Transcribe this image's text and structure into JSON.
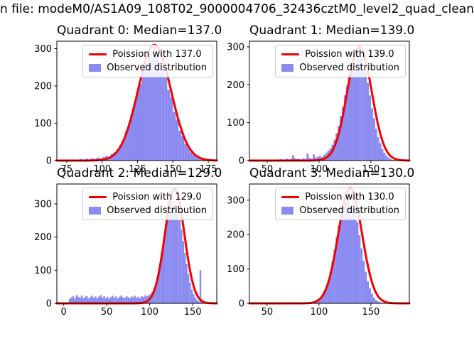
{
  "figure": {
    "title": "n file: modeM0/AS1A09_108T02_9000004706_32436cztM0_level2_quad_clean",
    "colors": {
      "bar": "#8a8af0",
      "fit": "#f40000",
      "spine": "#000000",
      "text": "#000000",
      "legend_border": "#cccccc"
    }
  },
  "chart_data": [
    {
      "type": "bar",
      "subtype": "histogram-with-fit",
      "title": "Quadrant 0: Median=137.0",
      "median": 137.0,
      "legend": [
        "Poission with 137.0",
        "Observed distribution"
      ],
      "legend_position": "upper right",
      "grid": false,
      "xlim": [
        68,
        181
      ],
      "ylim": [
        0,
        320
      ],
      "xticks": [
        75,
        100,
        125,
        150,
        175
      ],
      "yticks": [
        0,
        100,
        200,
        300
      ],
      "fit": {
        "type": "poisson",
        "lambda": 137.0,
        "peak": 310
      },
      "hist": {
        "bin_start": 74,
        "bin_width": 2,
        "counts": [
          2,
          1,
          3,
          2,
          1,
          4,
          2,
          5,
          3,
          6,
          4,
          8,
          6,
          9,
          12,
          10,
          18,
          22,
          30,
          42,
          55,
          78,
          95,
          125,
          150,
          185,
          205,
          240,
          260,
          285,
          270,
          305,
          280,
          265,
          245,
          225,
          190,
          170,
          130,
          110,
          80,
          65,
          45,
          35,
          22,
          15,
          9,
          5,
          3
        ]
      }
    },
    {
      "type": "bar",
      "subtype": "histogram-with-fit",
      "title": "Quadrant 1: Median=139.0",
      "median": 139.0,
      "legend": [
        "Poission with 139.0",
        "Observed distribution"
      ],
      "legend_position": "upper right",
      "grid": false,
      "xlim": [
        33,
        187
      ],
      "ylim": [
        0,
        315
      ],
      "xticks": [
        50,
        100,
        150
      ],
      "yticks": [
        0,
        100,
        200,
        300
      ],
      "fit": {
        "type": "poisson",
        "lambda": 139.0,
        "peak": 300
      },
      "hist": {
        "bin_start": 54,
        "bin_width": 2,
        "counts": [
          2,
          1,
          3,
          2,
          4,
          2,
          3,
          5,
          3,
          4,
          14,
          6,
          4,
          5,
          3,
          6,
          4,
          18,
          7,
          5,
          16,
          8,
          10,
          12,
          9,
          15,
          20,
          26,
          32,
          42,
          55,
          72,
          92,
          118,
          142,
          172,
          198,
          228,
          252,
          272,
          240,
          282,
          300,
          268,
          238,
          232,
          205,
          172,
          138,
          112,
          84,
          62,
          46,
          30,
          20,
          13,
          8,
          4,
          2
        ]
      }
    },
    {
      "type": "bar",
      "subtype": "histogram-with-fit",
      "title": "Quadrant 2: Median=129.0",
      "median": 129.0,
      "legend": [
        "Poission with 129.0",
        "Observed distribution"
      ],
      "legend_position": "upper right",
      "grid": false,
      "xlim": [
        -8,
        178
      ],
      "ylim": [
        0,
        360
      ],
      "xticks": [
        0,
        50,
        100,
        150
      ],
      "yticks": [
        0,
        100,
        200,
        300
      ],
      "fit": {
        "type": "poisson",
        "lambda": 129.0,
        "peak": 345
      },
      "hist": {
        "bin_start": 6,
        "bin_width": 2,
        "counts": [
          14,
          18,
          22,
          15,
          25,
          20,
          17,
          24,
          16,
          20,
          22,
          14,
          19,
          23,
          17,
          21,
          15,
          20,
          25,
          18,
          22,
          16,
          20,
          14,
          19,
          23,
          17,
          21,
          15,
          20,
          24,
          18,
          16,
          22,
          19,
          15,
          21,
          18,
          23,
          17,
          20,
          16,
          22,
          19,
          25,
          21,
          24,
          28,
          35,
          46,
          60,
          82,
          105,
          136,
          170,
          206,
          240,
          266,
          290,
          302,
          288,
          306,
          294,
          278,
          252,
          222,
          188,
          152,
          118,
          88,
          62,
          42,
          28,
          18,
          11,
          6,
          100,
          3,
          2,
          1,
          1
        ]
      }
    },
    {
      "type": "bar",
      "subtype": "histogram-with-fit",
      "title": "Quadrant 3: Median=130.0",
      "median": 130.0,
      "legend": [
        "Poission with 130.0",
        "Observed distribution"
      ],
      "legend_position": "upper right",
      "grid": false,
      "xlim": [
        33,
        187
      ],
      "ylim": [
        0,
        347
      ],
      "xticks": [
        50,
        100,
        150
      ],
      "yticks": [
        0,
        100,
        200,
        300
      ],
      "fit": {
        "type": "poisson",
        "lambda": 130.0,
        "peak": 335
      },
      "hist": {
        "bin_start": 92,
        "bin_width": 2,
        "counts": [
          2,
          5,
          9,
          12,
          16,
          24,
          34,
          48,
          66,
          92,
          122,
          156,
          192,
          226,
          256,
          282,
          302,
          318,
          332,
          252,
          312,
          272,
          236,
          198,
          160,
          124,
          92,
          64,
          44,
          28,
          17,
          10,
          6,
          3,
          2,
          1,
          1,
          0,
          1
        ]
      }
    }
  ]
}
